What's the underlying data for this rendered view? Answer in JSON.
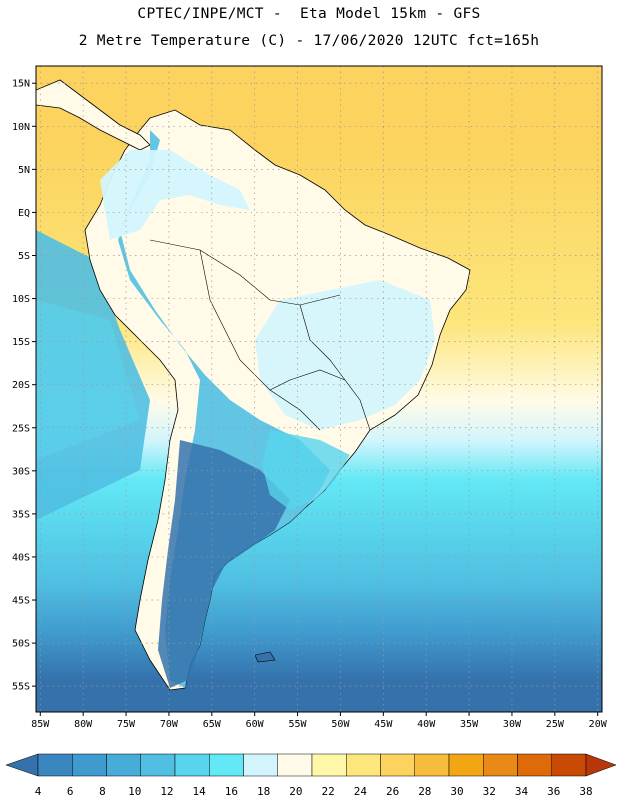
{
  "header": {
    "title_line1": "CPTEC/INPE/MCT -  Eta Model 15km - GFS",
    "title_line2": "2 Metre Temperature (C) - 17/06/2020 12UTC fct=165h"
  },
  "map": {
    "lat_labels": [
      "15N",
      "10N",
      "5N",
      "EQ",
      "5S",
      "10S",
      "15S",
      "20S",
      "25S",
      "30S",
      "35S",
      "40S",
      "45S",
      "50S",
      "55S"
    ],
    "lat_values": [
      15,
      10,
      5,
      0,
      -5,
      -10,
      -15,
      -20,
      -25,
      -30,
      -35,
      -40,
      -45,
      -50,
      -55
    ],
    "lon_labels": [
      "85W",
      "80W",
      "75W",
      "70W",
      "65W",
      "60W",
      "55W",
      "50W",
      "45W",
      "40W",
      "35W",
      "30W",
      "25W",
      "20W"
    ],
    "lon_values": [
      -85,
      -80,
      -75,
      -70,
      -65,
      -60,
      -55,
      -50,
      -45,
      -40,
      -35,
      -30,
      -25,
      -20
    ],
    "lon_range": [
      -85.5,
      -19.5
    ],
    "lat_range": [
      -58,
      17
    ],
    "gridlines": "dotted"
  },
  "colorbar": {
    "labels": [
      "4",
      "6",
      "8",
      "10",
      "12",
      "14",
      "16",
      "18",
      "20",
      "22",
      "24",
      "26",
      "28",
      "30",
      "32",
      "34",
      "36",
      "38"
    ],
    "colors": [
      "#3572ac",
      "#3a86bf",
      "#3f9acd",
      "#48acd9",
      "#50bfe2",
      "#58d4ec",
      "#63e8f5",
      "#d2f5fd",
      "#fffbe8",
      "#fef7a8",
      "#fde67c",
      "#fcd35e",
      "#f6bd3d",
      "#f2a614",
      "#e98a18",
      "#de6a0a",
      "#c94a05",
      "#b8360a"
    ]
  },
  "legend_colors": {
    "ocean_cold": "#3572ac",
    "ocean_warm": "#fcd35e",
    "land_warm": "#fffbe8",
    "mountain": "#d2f5fd"
  }
}
